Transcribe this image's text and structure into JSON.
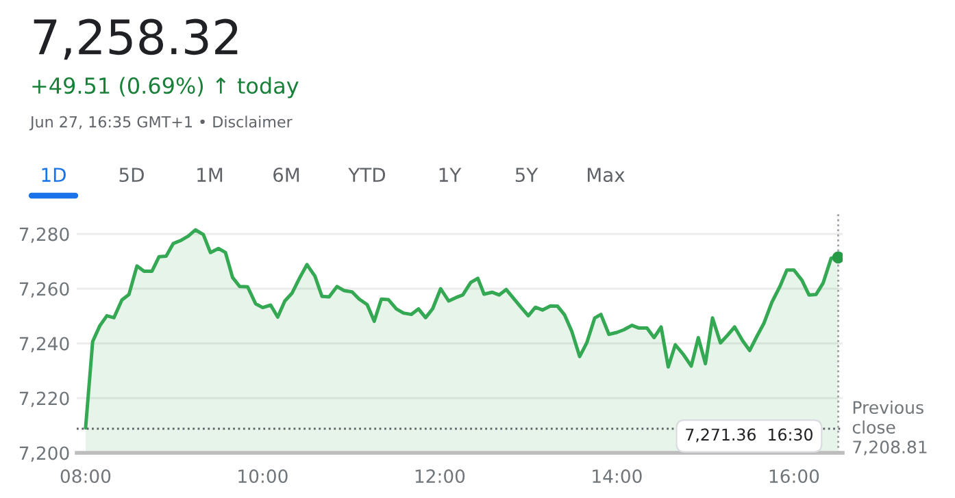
{
  "chart_data": {
    "type": "area",
    "title": "7,258.32",
    "subtitle": "+49.51 (0.69%) ↑ today",
    "annotations": [
      "Jun 27, 16:35 GMT+1 • Disclaimer",
      "1D",
      "5D",
      "1M",
      "6M",
      "YTD",
      "1Y",
      "5Y",
      "Max",
      "7,271.36  16:30"
    ],
    "series": [
      {
        "color": "#34a853",
        "marker": "none",
        "x": [
          8.0,
          8.08,
          8.16,
          8.24,
          8.32,
          8.41,
          8.49,
          8.58,
          8.66,
          8.75,
          8.83,
          8.91,
          8.99,
          9.08,
          9.16,
          9.24,
          9.33,
          9.41,
          9.5,
          9.58,
          9.66,
          9.74,
          9.83,
          9.92,
          10.0,
          10.09,
          10.17,
          10.25,
          10.33,
          10.42,
          10.5,
          10.59,
          10.67,
          10.75,
          10.84,
          10.92,
          11.01,
          11.09,
          11.18,
          11.26,
          11.34,
          11.42,
          11.51,
          11.59,
          11.68,
          11.76,
          11.84,
          11.92,
          12.01,
          12.1,
          12.18,
          12.26,
          12.35,
          12.43,
          12.5,
          12.59,
          12.67,
          12.75,
          12.84,
          12.92,
          13.0,
          13.08,
          13.16,
          13.25,
          13.33,
          13.41,
          13.49,
          13.58,
          13.66,
          13.75,
          13.82,
          13.91,
          14.0,
          14.08,
          14.17,
          14.25,
          14.34,
          14.42,
          14.5,
          14.58,
          14.66,
          14.75,
          14.84,
          14.92,
          15.0,
          15.08,
          15.17,
          15.25,
          15.33,
          15.42,
          15.5,
          15.58,
          15.66,
          15.75,
          15.84,
          15.92,
          16.0,
          16.09,
          16.17,
          16.25,
          16.33,
          16.42,
          16.5
        ],
        "values": [
          7209.1,
          7240.7,
          7246.4,
          7250.1,
          7249.4,
          7255.9,
          7257.9,
          7268.3,
          7266.4,
          7266.4,
          7271.7,
          7271.9,
          7276.5,
          7277.7,
          7279.2,
          7281.5,
          7279.8,
          7273.2,
          7274.7,
          7273.2,
          7264.1,
          7260.8,
          7260.7,
          7254.5,
          7253.1,
          7254.0,
          7249.6,
          7255.5,
          7258.3,
          7264.1,
          7268.8,
          7264.6,
          7257.2,
          7257.0,
          7260.8,
          7259.3,
          7258.8,
          7256.2,
          7254.2,
          7248.1,
          7256.2,
          7256.0,
          7252.6,
          7251.1,
          7250.6,
          7252.6,
          7249.4,
          7252.7,
          7260.0,
          7255.5,
          7256.7,
          7257.7,
          7262.3,
          7263.8,
          7258.0,
          7258.7,
          7257.7,
          7259.7,
          7256.2,
          7253.1,
          7250.1,
          7253.2,
          7252.2,
          7253.7,
          7253.6,
          7250.4,
          7244.5,
          7235.2,
          7240.2,
          7249.3,
          7250.6,
          7243.3,
          7244.0,
          7245.0,
          7246.6,
          7245.6,
          7245.6,
          7242.1,
          7246.0,
          7231.4,
          7239.5,
          7236.0,
          7231.7,
          7242.1,
          7232.6,
          7249.3,
          7240.2,
          7243.0,
          7246.0,
          7241.0,
          7237.4,
          7242.5,
          7247.3,
          7255.0,
          7260.7,
          7266.8,
          7266.8,
          7263.1,
          7257.7,
          7257.9,
          7262.1,
          7271.1,
          7271.4
        ]
      },
      {
        "type": "scatter",
        "marker": "circle",
        "color": "#2a9a48",
        "x": [
          16.5
        ],
        "values": [
          7271.4
        ]
      }
    ],
    "xlim": [
      7.9,
      16.55
    ],
    "xticks": [
      {
        "value": 8,
        "label": "08:00"
      },
      {
        "value": 10,
        "label": "10:00"
      },
      {
        "value": 12,
        "label": "12:00"
      },
      {
        "value": 14,
        "label": "14:00"
      },
      {
        "value": 16,
        "label": "16:00"
      }
    ],
    "ylim": [
      7200,
      7288
    ],
    "yticks": [
      {
        "value": 7200,
        "label": "7,200"
      },
      {
        "value": 7220,
        "label": "7,220"
      },
      {
        "value": 7240,
        "label": "7,240"
      },
      {
        "value": 7260,
        "label": "7,260"
      },
      {
        "value": 7280,
        "label": "7,280"
      }
    ],
    "ref_lines": [
      {
        "axis": "y",
        "value": 7208.81,
        "label": "Previous\nclose\n7,208.81",
        "color": "#5f6368",
        "line_style": "dotted"
      },
      {
        "axis": "x",
        "value": 16.5,
        "color": "#9aa0a6",
        "line_style": "dotted"
      }
    ],
    "grid": "y",
    "legend": false,
    "line_style": "solid"
  }
}
